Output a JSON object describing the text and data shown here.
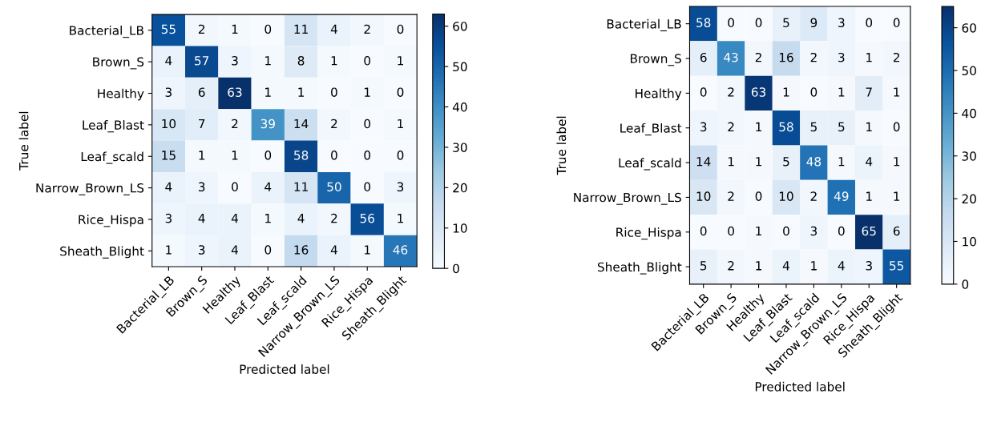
{
  "chart_data": [
    {
      "type": "heatmap",
      "xlabel": "Predicted label",
      "ylabel": "True label",
      "categories": [
        "Bacterial_LB",
        "Brown_S",
        "Healthy",
        "Leaf_Blast",
        "Leaf_scald",
        "Narrow_Brown_LS",
        "Rice_Hispa",
        "Sheath_Blight"
      ],
      "y_categories": [
        "Bacterial_LB",
        "Brown_S",
        "Healthy",
        "Leaf_Blast",
        "Leaf_scald",
        "Narrow_Brown_LS",
        "Rice_Hispa",
        "Sheath_Blight"
      ],
      "cells": [
        [
          55,
          2,
          1,
          0,
          11,
          4,
          2,
          0
        ],
        [
          4,
          57,
          3,
          1,
          8,
          1,
          0,
          1
        ],
        [
          3,
          6,
          63,
          1,
          1,
          0,
          1,
          0
        ],
        [
          10,
          7,
          2,
          39,
          14,
          2,
          0,
          1
        ],
        [
          15,
          1,
          1,
          0,
          58,
          0,
          0,
          0
        ],
        [
          4,
          3,
          0,
          4,
          11,
          50,
          0,
          3
        ],
        [
          3,
          4,
          4,
          1,
          4,
          2,
          56,
          1
        ],
        [
          1,
          3,
          4,
          0,
          16,
          4,
          1,
          46
        ]
      ],
      "clim": [
        0,
        63
      ],
      "cticks": [
        0,
        10,
        20,
        30,
        40,
        50,
        60
      ],
      "data_labels": true,
      "grid": false
    },
    {
      "type": "heatmap",
      "xlabel": "Predicted label",
      "ylabel": "True label",
      "categories": [
        "Bacterial_LB",
        "Brown_S",
        "Healthy",
        "Leaf_Blast",
        "Leaf_scald",
        "Narrow_Brown_LS",
        "Rice_Hispa",
        "Sheath_Blight"
      ],
      "y_categories": [
        "Bacterial_LB",
        "Brown_S",
        "Healthy",
        "Leaf_Blast",
        "Leaf_scald",
        "Narrow_Brown_LS",
        "Rice_Hispa",
        "Sheath_Blight"
      ],
      "cells": [
        [
          58,
          0,
          0,
          5,
          9,
          3,
          0,
          0
        ],
        [
          6,
          43,
          2,
          16,
          2,
          3,
          1,
          2
        ],
        [
          0,
          2,
          63,
          1,
          0,
          1,
          7,
          1
        ],
        [
          3,
          2,
          1,
          58,
          5,
          5,
          1,
          0
        ],
        [
          14,
          1,
          1,
          5,
          48,
          1,
          4,
          1
        ],
        [
          10,
          2,
          0,
          10,
          2,
          49,
          1,
          1
        ],
        [
          0,
          0,
          1,
          0,
          3,
          0,
          65,
          6
        ],
        [
          5,
          2,
          1,
          4,
          1,
          4,
          3,
          55
        ]
      ],
      "clim": [
        0,
        65
      ],
      "cticks": [
        0,
        10,
        20,
        30,
        40,
        50,
        60
      ],
      "data_labels": true,
      "grid": false
    }
  ]
}
